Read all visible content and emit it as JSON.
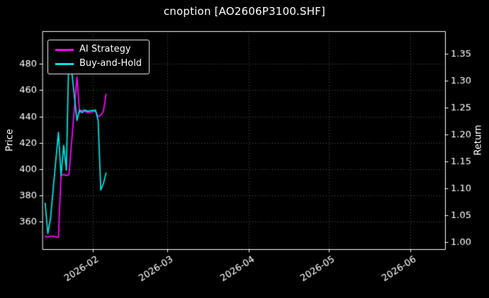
{
  "title": "cnoption [AO2606P3100.SHF]",
  "axes": {
    "left_label": "Price",
    "right_label": "Return"
  },
  "legend": {
    "position": "upper left",
    "items": [
      {
        "label": "AI Strategy",
        "color": "#ff00ff"
      },
      {
        "label": "Buy-and-Hold",
        "color": "#00e0e0"
      }
    ]
  },
  "colors": {
    "background": "#000000",
    "text": "#ffffff",
    "grid": "#555555",
    "spine": "#ffffff"
  },
  "chart_data": {
    "type": "line",
    "title": "cnoption [AO2606P3100.SHF]",
    "xlabel": "",
    "ylabel_left": "Price",
    "ylabel_right": "Return",
    "grid": true,
    "legend_position": "upper left",
    "x_range": [
      "2026-01-13",
      "2026-06-14"
    ],
    "ylim_left": [
      339,
      505
    ],
    "ylim_right": [
      0.987,
      1.392
    ],
    "y_ticks_left": [
      360,
      380,
      400,
      420,
      440,
      460,
      480
    ],
    "y_ticks_right": [
      1.0,
      1.05,
      1.1,
      1.15,
      1.2,
      1.25,
      1.3,
      1.35
    ],
    "x_ticks": [
      {
        "date": "2026-02-01",
        "label": "2026-02"
      },
      {
        "date": "2026-03-01",
        "label": "2026-03"
      },
      {
        "date": "2026-04-01",
        "label": "2026-04"
      },
      {
        "date": "2026-05-01",
        "label": "2026-05"
      },
      {
        "date": "2026-06-01",
        "label": "2026-06"
      }
    ],
    "x": [
      "2026-01-14",
      "2026-01-15",
      "2026-01-16",
      "2026-01-19",
      "2026-01-20",
      "2026-01-21",
      "2026-01-22",
      "2026-01-23",
      "2026-01-26",
      "2026-01-27",
      "2026-01-28",
      "2026-01-29",
      "2026-01-30",
      "2026-02-02",
      "2026-02-03",
      "2026-02-04",
      "2026-02-05",
      "2026-02-06"
    ],
    "series": [
      {
        "name": "AI Strategy",
        "color": "#ff00ff",
        "values": [
          349,
          348,
          349,
          348,
          395,
          396,
          395,
          396,
          470,
          443,
          445,
          444,
          443,
          444,
          440,
          441,
          444,
          457
        ]
      },
      {
        "name": "Buy-and-Hold",
        "color": "#00e0e0",
        "values": [
          374,
          351,
          362,
          428,
          395,
          418,
          399,
          494,
          437,
          445,
          443,
          445,
          444,
          445,
          437,
          384,
          389,
          397
        ]
      }
    ]
  }
}
